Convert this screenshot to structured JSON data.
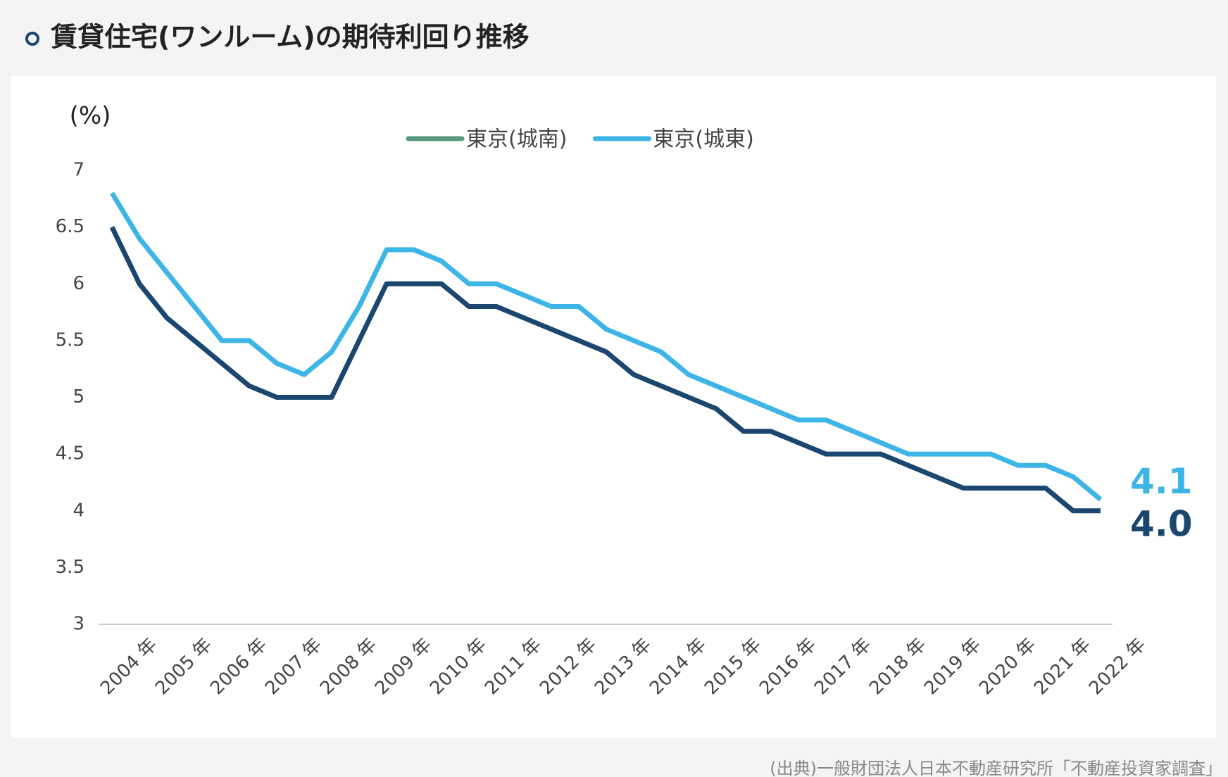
{
  "chart_data": {
    "type": "line",
    "title": "賃貸住宅(ワンルーム)の期待利回り推移",
    "y_label": "(%)",
    "source": "(出典)一般財団法人日本不動産研究所「不動産投資家調査」",
    "categories": [
      "2004 年",
      null,
      "2005 年",
      null,
      "2006 年",
      null,
      "2007 年",
      null,
      "2008 年",
      null,
      "2009 年",
      null,
      "2010 年",
      null,
      "2011 年",
      null,
      "2012 年",
      null,
      "2013 年",
      null,
      "2014 年",
      null,
      "2015 年",
      null,
      "2016 年",
      null,
      "2017 年",
      null,
      "2018 年",
      null,
      "2019 年",
      null,
      "2020 年",
      null,
      "2021 年",
      null,
      "2022 年"
    ],
    "series": [
      {
        "name": "東京(城南)",
        "color": "#1a4670",
        "legend_color": "#5a9a80",
        "end_label": "4.0",
        "values": [
          6.5,
          6.0,
          5.7,
          5.5,
          5.3,
          5.1,
          5.0,
          5.0,
          5.0,
          5.5,
          6.0,
          6.0,
          6.0,
          5.8,
          5.8,
          5.7,
          5.6,
          5.5,
          5.4,
          5.2,
          5.1,
          5.0,
          4.9,
          4.7,
          4.7,
          4.6,
          4.5,
          4.5,
          4.5,
          4.4,
          4.3,
          4.2,
          4.2,
          4.2,
          4.2,
          4.0,
          4.0
        ]
      },
      {
        "name": "東京(城東)",
        "color": "#3db5e6",
        "legend_color": "#3db5e6",
        "end_label": "4.1",
        "values": [
          6.8,
          6.4,
          6.1,
          5.8,
          5.5,
          5.5,
          5.3,
          5.2,
          5.4,
          5.8,
          6.3,
          6.3,
          6.2,
          6.0,
          6.0,
          5.9,
          5.8,
          5.8,
          5.6,
          5.5,
          5.4,
          5.2,
          5.1,
          5.0,
          4.9,
          4.8,
          4.8,
          4.7,
          4.6,
          4.5,
          4.5,
          4.5,
          4.5,
          4.4,
          4.4,
          4.3,
          4.1
        ]
      }
    ],
    "ylim": [
      3,
      7
    ],
    "yticks": [
      3,
      3.5,
      4,
      4.5,
      5,
      5.5,
      6,
      6.5,
      7
    ],
    "grid": false
  }
}
